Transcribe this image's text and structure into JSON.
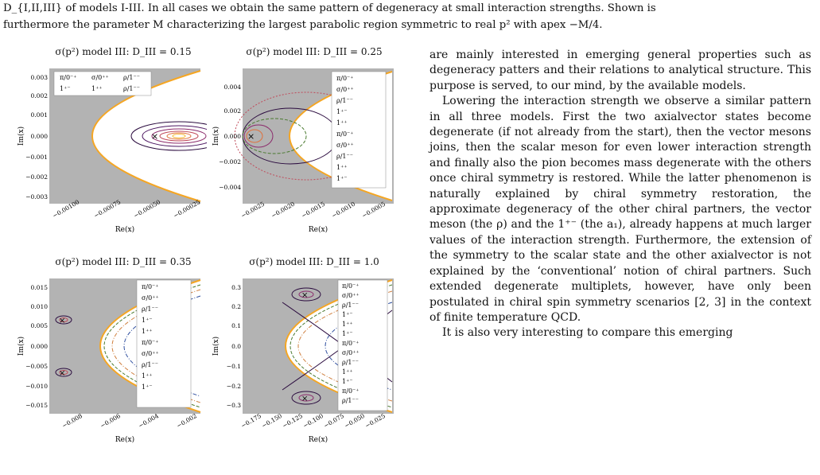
{
  "caption": {
    "line1": "D_{I,II,III} of models I-III. In all cases we obtain the same pattern of degeneracy at small interaction strengths. Shown is",
    "line2": "furthermore the parameter M characterizing the largest parabolic region symmetric to real p² with apex −M/4."
  },
  "panels": [
    {
      "title": "σ(p²) model III: D_III = 0.15",
      "xlabel": "Re(x)",
      "ylabel": "Im(x)",
      "yticks": [
        "0.003",
        "0.002",
        "0.001",
        "0.000",
        "−0.001",
        "−0.002",
        "−0.003"
      ],
      "xticks": [
        "−0.00100",
        "−0.00075",
        "−0.00050",
        "−0.00025"
      ],
      "legend": [
        "π/0⁻⁺",
        "σ/0⁺⁺",
        "ρ/1⁻⁻",
        "1⁺⁻",
        "1⁺⁺",
        "ρ/1⁻⁻"
      ]
    },
    {
      "title": "σ(p²) model III: D_III = 0.25",
      "xlabel": "Re(x)",
      "ylabel": "Im(x)",
      "yticks": [
        "0.004",
        "0.002",
        "0.000",
        "−0.002",
        "−0.004"
      ],
      "xticks": [
        "−0.0025",
        "−0.0020",
        "−0.0015",
        "−0.0010",
        "−0.0005"
      ],
      "legend": [
        "π/0⁻⁺",
        "σ/0⁺⁺",
        "ρ/1⁻⁻",
        "1⁺⁻",
        "1⁺⁺",
        "π/0⁻⁺",
        "σ/0⁺⁺",
        "ρ/1⁻⁻",
        "1⁺⁺",
        "1⁺⁻"
      ]
    },
    {
      "title": "σ(p²) model III: D_III = 0.35",
      "xlabel": "Re(x)",
      "ylabel": "Im(x)",
      "yticks": [
        "0.015",
        "0.010",
        "0.005",
        "0.000",
        "−0.005",
        "−0.010",
        "−0.015"
      ],
      "xticks": [
        "−0.008",
        "−0.006",
        "−0.004",
        "−0.002"
      ],
      "legend": [
        "π/0⁻⁺",
        "σ/0⁺⁺",
        "ρ/1⁻⁻",
        "1⁺⁻",
        "1⁺⁺",
        "π/0⁻⁺",
        "σ/0⁺⁺",
        "ρ/1⁻⁻",
        "1⁺⁺",
        "1⁺⁻"
      ]
    },
    {
      "title": "σ(p²) model III: D_III = 1.0",
      "xlabel": "Re(x)",
      "ylabel": "Im(x)",
      "yticks": [
        "0.3",
        "0.2",
        "0.1",
        "0.0",
        "−0.1",
        "−0.2",
        "−0.3"
      ],
      "xticks": [
        "−0.175",
        "−0.150",
        "−0.125",
        "−0.100",
        "−0.075",
        "−0.050",
        "−0.025"
      ],
      "legend": [
        "π/0⁻⁺",
        "σ/0⁺⁺",
        "ρ/1⁻⁻",
        "1⁺⁻",
        "1⁺⁺",
        "1⁺⁻",
        "π/0⁻⁺",
        "σ/0⁺⁺",
        "ρ/1⁻⁻",
        "1⁺⁺",
        "1⁺⁻",
        "π/0⁻⁺",
        "ρ/1⁻⁻"
      ]
    }
  ],
  "body": {
    "p1": "are mainly interested in emerging general properties such as degeneracy patters and their relations to analytical structure. This purpose is served, to our mind, by the available models.",
    "p2": "Lowering the interaction strength we observe a similar pattern in all three models. First the two axialvector states become degenerate (if not already from the start), then the vector mesons joins, then the scalar meson for even lower interaction strength and finally also the pion becomes mass degenerate with the others once chiral symmetry is restored. While the latter phenomenon is naturally explained by chiral symmetry restoration, the approximate degeneracy of the other chiral partners, the vector meson (the ρ) and the 1⁺⁻ (the a₁), already happens at much larger values of the interaction strength. Furthermore, the extension of the symmetry to the scalar state and the other axialvector is not explained by the ‘conventional’ notion of chiral partners. Such extended degenerate multiplets, however, have only been postulated in chiral spin symmetry scenarios [2, 3] in the context of finite temperature QCD.",
    "p3": "It is also very interesting to compare this emerging"
  },
  "colors": {
    "shade": "#b3b3b3",
    "parabola": "#f5a623",
    "contour_dark": "#2a0a3e",
    "contour_mid": "#8b2a6b",
    "contour_hot": "#f08a1c"
  }
}
